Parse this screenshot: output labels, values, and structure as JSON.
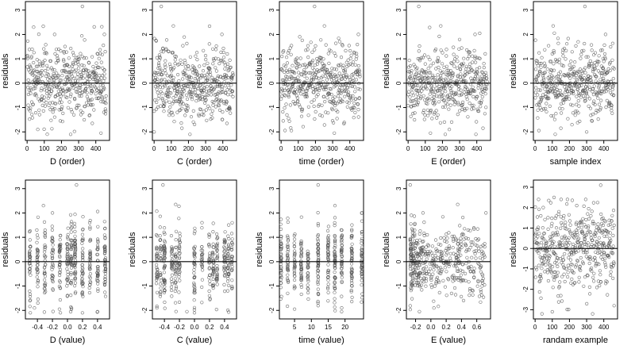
{
  "figure": {
    "background": "#ffffff",
    "point_color": "#555555",
    "line_color": "#000000",
    "random_seed": 7
  },
  "chart_data": [
    {
      "type": "scatter",
      "ylabel": "residuals",
      "xlabel": "D (order)",
      "xlim": [
        -10,
        480
      ],
      "ylim": [
        -2.35,
        3.35
      ],
      "xticks": [
        0,
        100,
        200,
        300,
        400
      ],
      "xtick_labels": [
        "0",
        "100",
        "200",
        "300",
        "400"
      ],
      "yticks": [
        -2,
        -1,
        0,
        1,
        2,
        3
      ],
      "ytick_labels": [
        "-2",
        "-1",
        "0",
        "1",
        "2",
        "3"
      ],
      "reference_line": 0,
      "n_points": 460,
      "x_pattern": {
        "kind": "order",
        "max": 460
      },
      "y_pattern": {
        "kind": "normal",
        "sd": 0.75
      },
      "notable_points": [
        [
          322,
          3.15
        ],
        [
          38,
          2.3
        ],
        [
          160,
          2.0
        ],
        [
          450,
          2.0
        ],
        [
          62,
          -1.9
        ],
        [
          430,
          -2.05
        ]
      ]
    },
    {
      "type": "scatter",
      "ylabel": "residuals",
      "xlabel": "C (order)",
      "xlim": [
        -10,
        480
      ],
      "ylim": [
        -2.35,
        3.35
      ],
      "xticks": [
        0,
        100,
        200,
        300,
        400
      ],
      "xtick_labels": [
        "0",
        "100",
        "200",
        "300",
        "400"
      ],
      "yticks": [
        -2,
        -1,
        0,
        1,
        2,
        3
      ],
      "ytick_labels": [
        "-2",
        "-1",
        "0",
        "1",
        "2",
        "3"
      ],
      "reference_line": 0,
      "n_points": 460,
      "x_pattern": {
        "kind": "order",
        "max": 460
      },
      "y_pattern": {
        "kind": "normal",
        "sd": 0.75
      },
      "notable_points": [
        [
          42,
          3.15
        ],
        [
          112,
          2.35
        ],
        [
          395,
          2.0
        ],
        [
          162,
          -1.85
        ],
        [
          0,
          -2.0
        ]
      ]
    },
    {
      "type": "scatter",
      "ylabel": "residuals",
      "xlabel": "time (order)",
      "xlim": [
        -10,
        480
      ],
      "ylim": [
        -2.35,
        3.35
      ],
      "xticks": [
        0,
        100,
        200,
        300,
        400
      ],
      "xtick_labels": [
        "0",
        "100",
        "200",
        "300",
        "400"
      ],
      "yticks": [
        -2,
        -1,
        0,
        1,
        2,
        3
      ],
      "ytick_labels": [
        "-2",
        "-1",
        "0",
        "1",
        "2",
        "3"
      ],
      "reference_line": 0,
      "n_points": 460,
      "x_pattern": {
        "kind": "order",
        "max": 460
      },
      "y_pattern": {
        "kind": "normal",
        "sd": 0.75
      },
      "notable_points": [
        [
          195,
          3.15
        ],
        [
          252,
          2.35
        ],
        [
          450,
          2.0
        ],
        [
          60,
          -1.95
        ],
        [
          310,
          -2.05
        ]
      ]
    },
    {
      "type": "scatter",
      "ylabel": "residuals",
      "xlabel": "E (order)",
      "xlim": [
        -10,
        480
      ],
      "ylim": [
        -2.35,
        3.35
      ],
      "xticks": [
        0,
        100,
        200,
        300,
        400
      ],
      "xtick_labels": [
        "0",
        "100",
        "200",
        "300",
        "400"
      ],
      "yticks": [
        -2,
        -1,
        0,
        1,
        2,
        3
      ],
      "ytick_labels": [
        "-2",
        "-1",
        "0",
        "1",
        "2",
        "3"
      ],
      "reference_line": 0,
      "n_points": 460,
      "x_pattern": {
        "kind": "order",
        "max": 460
      },
      "y_pattern": {
        "kind": "normal",
        "sd": 0.75
      },
      "notable_points": [
        [
          62,
          3.15
        ],
        [
          190,
          2.35
        ],
        [
          390,
          2.0
        ],
        [
          240,
          -1.9
        ],
        [
          130,
          -2.05
        ]
      ]
    },
    {
      "type": "scatter",
      "ylabel": "residuals",
      "xlabel": "sample index",
      "xlim": [
        -10,
        480
      ],
      "ylim": [
        -2.35,
        3.35
      ],
      "xticks": [
        0,
        100,
        200,
        300,
        400
      ],
      "xtick_labels": [
        "0",
        "100",
        "200",
        "300",
        "400"
      ],
      "yticks": [
        -2,
        -1,
        0,
        1,
        2,
        3
      ],
      "ytick_labels": [
        "-2",
        "-1",
        "0",
        "1",
        "2",
        "3"
      ],
      "reference_line": 0,
      "n_points": 460,
      "x_pattern": {
        "kind": "order",
        "max": 460
      },
      "y_pattern": {
        "kind": "normal",
        "sd": 0.75
      },
      "notable_points": [
        [
          290,
          3.15
        ],
        [
          105,
          2.35
        ],
        [
          410,
          2.0
        ],
        [
          300,
          -2.0
        ],
        [
          150,
          -1.85
        ]
      ]
    },
    {
      "type": "scatter",
      "ylabel": "residuals",
      "xlabel": "D (value)",
      "xlim": [
        -0.56,
        0.56
      ],
      "ylim": [
        -2.35,
        3.35
      ],
      "xticks": [
        -0.4,
        -0.2,
        0.0,
        0.2,
        0.4
      ],
      "xtick_labels": [
        "-0.4",
        "-0.2",
        "0.0",
        "0.2",
        "0.4"
      ],
      "yticks": [
        -2,
        -1,
        0,
        1,
        2,
        3
      ],
      "ytick_labels": [
        "-2",
        "-1",
        "0",
        "1",
        "2",
        "3"
      ],
      "reference_line": 0,
      "n_points": 460,
      "x_pattern": {
        "kind": "discrete",
        "levels": [
          -0.5,
          -0.4,
          -0.3,
          -0.2,
          -0.1,
          0.0,
          0.05,
          0.1,
          0.2,
          0.3,
          0.4,
          0.5
        ],
        "jitter": 0.008
      },
      "y_pattern": {
        "kind": "normal",
        "sd": 0.75
      },
      "notable_points": [
        [
          0.12,
          3.15
        ],
        [
          -0.32,
          2.3
        ],
        [
          -0.2,
          2.0
        ],
        [
          -0.44,
          -1.9
        ],
        [
          0.4,
          -2.05
        ]
      ]
    },
    {
      "type": "scatter",
      "ylabel": "residuals",
      "xlabel": "C (value)",
      "xlim": [
        -0.56,
        0.56
      ],
      "ylim": [
        -2.35,
        3.35
      ],
      "xticks": [
        -0.4,
        -0.2,
        0.0,
        0.2,
        0.4
      ],
      "xtick_labels": [
        "-0.4",
        "-0.2",
        "0.0",
        "0.2",
        "0.4"
      ],
      "yticks": [
        -2,
        -1,
        0,
        1,
        2,
        3
      ],
      "ytick_labels": [
        "-2",
        "-1",
        "0",
        "1",
        "2",
        "3"
      ],
      "reference_line": 0,
      "n_points": 460,
      "x_pattern": {
        "kind": "discrete",
        "levels": [
          -0.5,
          -0.45,
          -0.4,
          -0.3,
          -0.25,
          -0.2,
          0.0,
          0.1,
          0.2,
          0.25,
          0.3,
          0.4,
          0.45,
          0.5
        ],
        "jitter": 0.008
      },
      "y_pattern": {
        "kind": "normal",
        "sd": 0.75
      },
      "notable_points": [
        [
          -0.42,
          3.15
        ],
        [
          -0.25,
          2.35
        ],
        [
          0.1,
          1.6
        ],
        [
          -0.5,
          -1.9
        ],
        [
          -0.1,
          -2.05
        ]
      ]
    },
    {
      "type": "scatter",
      "ylabel": "residuals",
      "xlabel": "time (value)",
      "xlim": [
        0.5,
        25.5
      ],
      "ylim": [
        -2.35,
        3.35
      ],
      "xticks": [
        5,
        10,
        15,
        20
      ],
      "xtick_labels": [
        "5",
        "10",
        "15",
        "20"
      ],
      "yticks": [
        -2,
        -1,
        0,
        1,
        2,
        3
      ],
      "ytick_labels": [
        "-2",
        "-1",
        "0",
        "1",
        "2",
        "3"
      ],
      "reference_line": 0,
      "n_points": 460,
      "x_pattern": {
        "kind": "discrete",
        "levels": [
          1,
          3,
          5,
          7,
          9,
          12,
          15,
          17,
          19,
          22,
          25
        ],
        "jitter": 0.12
      },
      "y_pattern": {
        "kind": "normal",
        "sd": 0.75
      },
      "notable_points": [
        [
          12,
          3.15
        ],
        [
          17,
          2.3
        ],
        [
          25,
          2.0
        ],
        [
          5,
          -1.95
        ],
        [
          19,
          -2.05
        ]
      ]
    },
    {
      "type": "scatter",
      "ylabel": "residuals",
      "xlabel": "E (value)",
      "xlim": [
        -0.32,
        0.78
      ],
      "ylim": [
        -2.35,
        3.35
      ],
      "xticks": [
        -0.2,
        0.0,
        0.2,
        0.4,
        0.6
      ],
      "xtick_labels": [
        "-0.2",
        "0.0",
        "0.2",
        "0.4",
        "0.6"
      ],
      "yticks": [
        -2,
        -1,
        0,
        1,
        2,
        3
      ],
      "ytick_labels": [
        "-2",
        "-1",
        "0",
        "1",
        "2",
        "3"
      ],
      "reference_line": 0,
      "n_points": 460,
      "x_pattern": {
        "kind": "skewed",
        "min": -0.27,
        "max": 0.72
      },
      "y_pattern": {
        "kind": "normal",
        "sd": 0.75
      },
      "notable_points": [
        [
          -0.27,
          3.15
        ],
        [
          0.35,
          2.35
        ],
        [
          0.72,
          2.0
        ],
        [
          0.04,
          -1.9
        ],
        [
          -0.15,
          -2.05
        ]
      ]
    },
    {
      "type": "scatter",
      "ylabel": "residuals",
      "xlabel": "randam example",
      "xlim": [
        -10,
        480
      ],
      "ylim": [
        -3.45,
        3.35
      ],
      "xticks": [
        0,
        100,
        200,
        300,
        400
      ],
      "xtick_labels": [
        "0",
        "100",
        "200",
        "300",
        "400"
      ],
      "yticks": [
        -3,
        -2,
        -1,
        0,
        1,
        2,
        3
      ],
      "ytick_labels": [
        "-3",
        "-2",
        "-1",
        "0",
        "1",
        "2",
        "3"
      ],
      "reference_line": 0,
      "n_points": 460,
      "x_pattern": {
        "kind": "order",
        "max": 460
      },
      "y_pattern": {
        "kind": "normal",
        "sd": 1.0
      },
      "notable_points": [
        [
          382,
          3.1
        ],
        [
          110,
          2.5
        ],
        [
          20,
          2.4
        ],
        [
          40,
          -3.2
        ],
        [
          100,
          -3.1
        ],
        [
          460,
          -2.8
        ]
      ]
    }
  ]
}
